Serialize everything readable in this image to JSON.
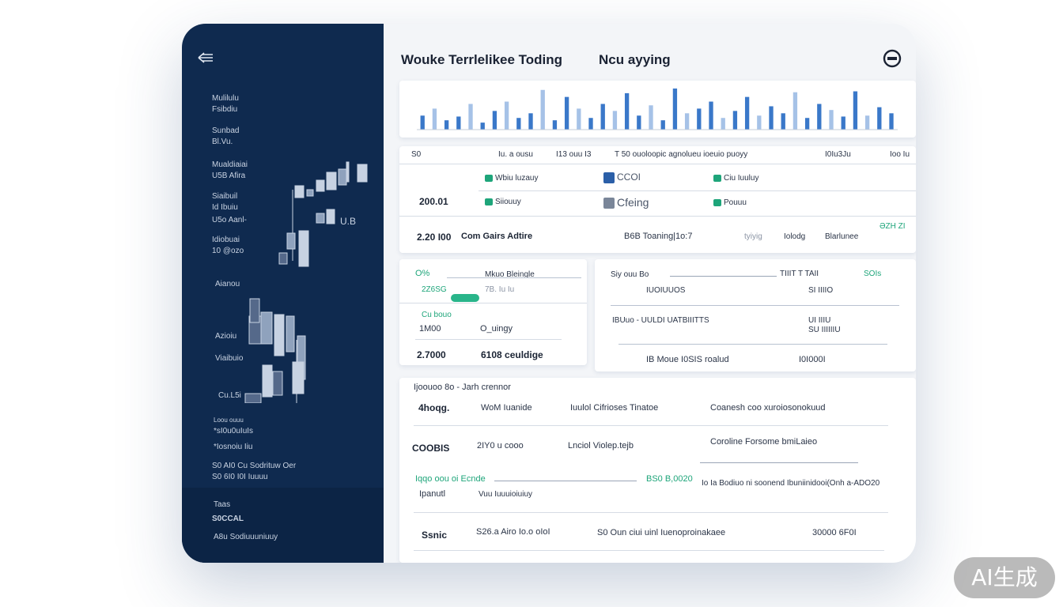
{
  "header": {
    "title": "Wouke Terrlelikee Toding",
    "subtitle": "Ncu ayying"
  },
  "sidebar": {
    "items": [
      "Mulilulu",
      "Fsibdiu",
      "Sunbad",
      "Bl.Vu.",
      "Mualdiaiai",
      "U5B Afira",
      "Siaibuil",
      "Id Ibuiu",
      "U5o Aanl-",
      "Idiobuai",
      "10 @ozo",
      "Aianou",
      "Azioiu",
      "Viaibuio",
      "Cu.L5i"
    ],
    "chart_label": "U.B",
    "footer": [
      "Loou ouuu",
      "*sI0u0uIuIs",
      "*Iosnoiu Iiu",
      "S0 AI0  Cu Sodrituw Oer",
      "S0 6I0  I0I Iuuuu",
      "Taas",
      "S0CCAL",
      "A8u Sodiuuuniuuy"
    ]
  },
  "top_chart": {
    "color": "#3a78c9",
    "values": [
      30,
      45,
      20,
      28,
      55,
      15,
      40,
      60,
      25,
      35,
      85,
      20,
      70,
      45,
      25,
      55,
      40,
      78,
      30,
      52,
      20,
      88,
      35,
      45,
      60,
      25,
      40,
      70,
      30,
      50,
      35,
      80,
      25,
      55,
      42,
      28,
      82,
      30,
      48,
      35
    ]
  },
  "table1": {
    "header": [
      "S0",
      "Iu. a ousu",
      "I13 ouu I3",
      "T 50 ouoloopic agnolueu ioeuio puoyy",
      "I0Iu3Ju",
      "Ioo Iu"
    ],
    "row1": [
      "Wbiu luzauy",
      "CCOI",
      "Ciu Iuuluy"
    ],
    "row2": [
      "200.01",
      "Siiouuy",
      "Cfeing",
      "Pouuu"
    ],
    "row3": [
      "2.20 I00",
      "Com Gairs Adtire",
      "B6B Toaning|1o:7",
      "tyiyig",
      "Iolodg",
      "Blarlunee",
      "ƏZH ZI"
    ]
  },
  "left_panel": [
    "O%",
    "Mkuo Bleingle",
    "2Z6SG",
    "7B. Iu Iu",
    "Cu bouo",
    "1M00",
    "O_uingy",
    "2.7000",
    "6108 ceuldige"
  ],
  "right_panel": [
    "Siy ouu Bo",
    "TIIIT T TAII",
    "SOIs",
    "IUOIUUOS",
    "SI IIIIO",
    "IBUuo - UULDI UATBIIITTS",
    "UI IIIU",
    "SU IIIIIIU",
    "IB Moue I0SIS roalud",
    "I0I000I"
  ],
  "bottom_table": {
    "title": "Ijoouoo 8o - Jarh crennor",
    "rows": [
      [
        "4hoqg.",
        "WoM Iuanide",
        "Iuulol Cifrioses Tinatoe",
        "Coanesh coo xuroiosonokuud"
      ],
      [
        "COOBIS",
        "2IY0 u cooo",
        "Lnciol Violep.tejb",
        "Coroline Forsome bmiLaieo"
      ],
      [
        "Iqqo oou oi Ecnde",
        "BS0 B,0020",
        "Io Ia Bodiuo ni soonend Ibuniinidooi(Onh a-ADO20"
      ],
      [
        "Ipanutl",
        "Vuu Iuuuioiuiuy"
      ],
      [
        "Ssnic",
        "S26.a Airo Io.o oIoI",
        "S0 Oun ciui uinl Iuenoproinakaee",
        "30000 6F0I"
      ]
    ]
  },
  "watermark": "AI生成"
}
